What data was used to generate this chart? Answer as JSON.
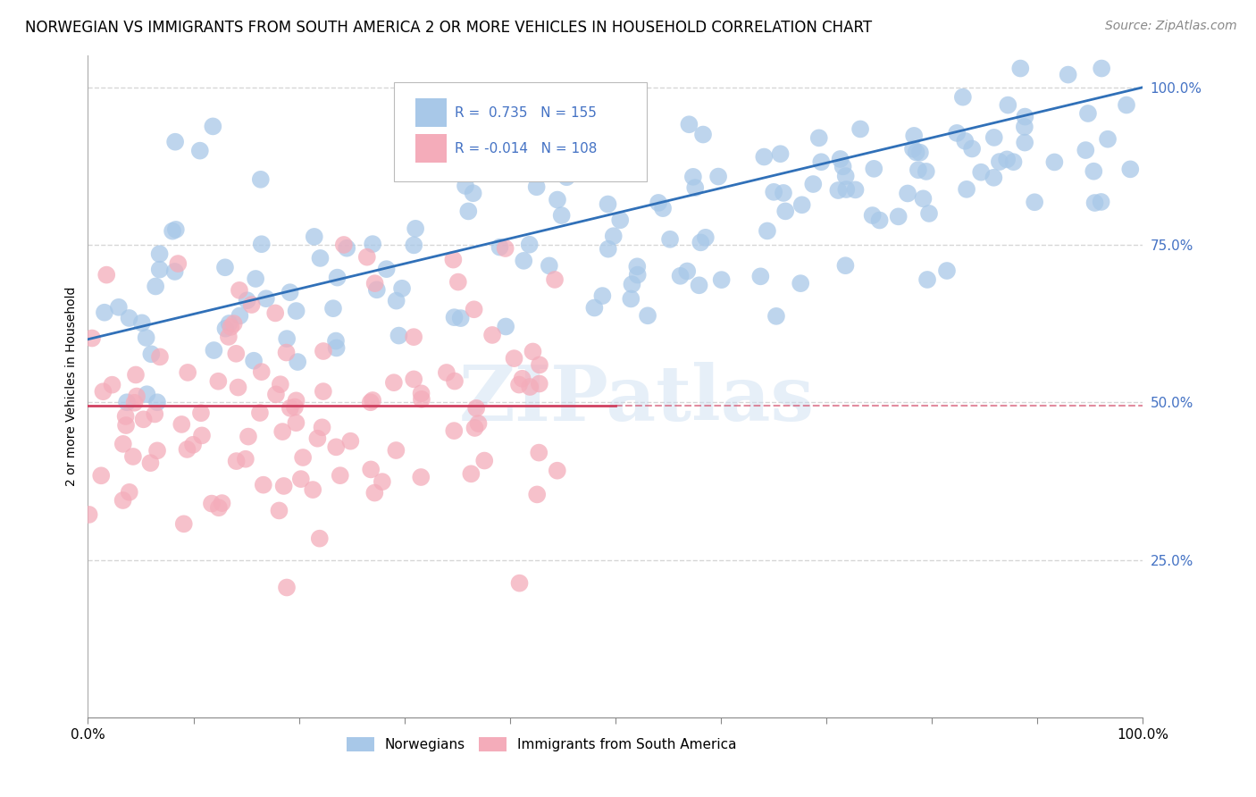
{
  "title": "NORWEGIAN VS IMMIGRANTS FROM SOUTH AMERICA 2 OR MORE VEHICLES IN HOUSEHOLD CORRELATION CHART",
  "source": "Source: ZipAtlas.com",
  "ylabel": "2 or more Vehicles in Household",
  "xmin": 0.0,
  "xmax": 1.0,
  "ymin": 0.0,
  "ymax": 1.05,
  "xtick_positions": [
    0.0,
    0.1,
    0.2,
    0.3,
    0.4,
    0.5,
    0.6,
    0.7,
    0.8,
    0.9,
    1.0
  ],
  "xtick_labels_show": [
    "0.0%",
    "",
    "",
    "",
    "",
    "",
    "",
    "",
    "",
    "",
    "100.0%"
  ],
  "ytick_labels": [
    "25.0%",
    "50.0%",
    "75.0%",
    "100.0%"
  ],
  "ytick_positions": [
    0.25,
    0.5,
    0.75,
    1.0
  ],
  "blue_R": 0.735,
  "blue_N": 155,
  "pink_R": -0.014,
  "pink_N": 108,
  "blue_color": "#A8C8E8",
  "pink_color": "#F4ACBA",
  "blue_line_color": "#3070B8",
  "pink_line_color": "#D04060",
  "legend_label_blue": "Norwegians",
  "legend_label_pink": "Immigrants from South America",
  "legend_R_color": "#4472C4",
  "watermark": "ZIPatlas",
  "title_fontsize": 12,
  "axis_label_fontsize": 10,
  "tick_fontsize": 10,
  "source_fontsize": 10,
  "grid_color": "#CCCCCC",
  "background_color": "#FFFFFF",
  "blue_line_start_y": 0.6,
  "blue_line_end_y": 1.0,
  "pink_line_y": 0.495
}
